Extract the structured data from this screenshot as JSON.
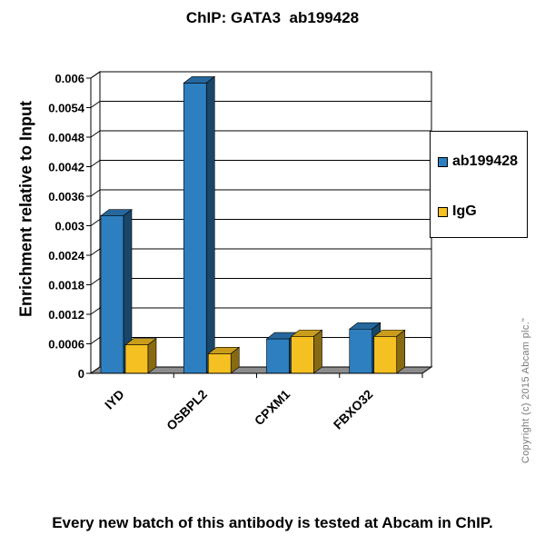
{
  "chart_data": {
    "type": "bar",
    "title": "ChIP: GATA3  ab199428",
    "ylabel": "Enrichment relative to Input",
    "xlabel": "",
    "categories": [
      "IYD",
      "OSBPL2",
      "CPXM1",
      "FBXO32"
    ],
    "series": [
      {
        "name": "ab199428",
        "color": "#2e7fbf",
        "values": [
          0.0032,
          0.0059,
          0.0007,
          0.0009
        ]
      },
      {
        "name": "IgG",
        "color": "#f5c021",
        "values": [
          0.00058,
          0.0004,
          0.00075,
          0.00075
        ]
      }
    ],
    "ylim": [
      0,
      0.006
    ],
    "yticks": [
      "0.006",
      "0.0054",
      "0.0048",
      "0.0042",
      "0.0036",
      "0.003",
      "0.0024",
      "0.0018",
      "0.0012",
      "0.0006",
      "0"
    ],
    "grid": true,
    "legend_position": "right",
    "style": "3d"
  },
  "copyright": "Copyright (c) 2015 Abcam plc.\"",
  "footer": "Every new batch of this antibody is tested at Abcam in ChIP."
}
